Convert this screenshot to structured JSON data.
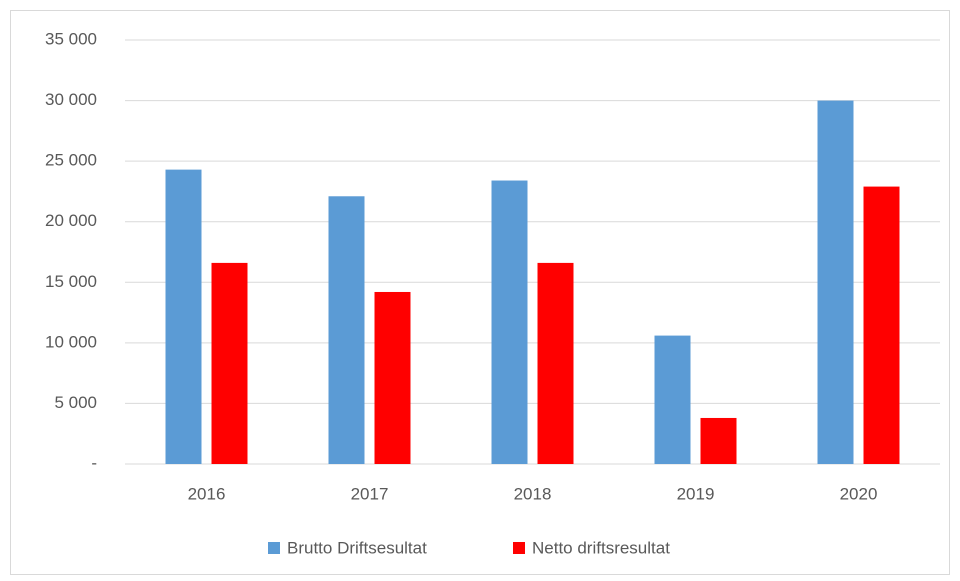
{
  "chart_data": {
    "type": "bar",
    "categories": [
      "2016",
      "2017",
      "2018",
      "2019",
      "2020"
    ],
    "series": [
      {
        "name": "Brutto Driftsesultat",
        "color": "#5b9bd5",
        "values": [
          24300,
          22100,
          23400,
          10600,
          30000
        ]
      },
      {
        "name": "Netto driftsresultat",
        "color": "#ff0000",
        "values": [
          16600,
          14200,
          16600,
          3800,
          22900
        ]
      }
    ],
    "ylim": [
      0,
      35000
    ],
    "yticks": [
      {
        "value": 0,
        "label": "-"
      },
      {
        "value": 5000,
        "label": "5 000"
      },
      {
        "value": 10000,
        "label": "10 000"
      },
      {
        "value": 15000,
        "label": "15 000"
      },
      {
        "value": 20000,
        "label": "20 000"
      },
      {
        "value": 25000,
        "label": "25 000"
      },
      {
        "value": 30000,
        "label": "30 000"
      },
      {
        "value": 35000,
        "label": "35 000"
      }
    ],
    "grid": true,
    "legend": "bottom"
  }
}
